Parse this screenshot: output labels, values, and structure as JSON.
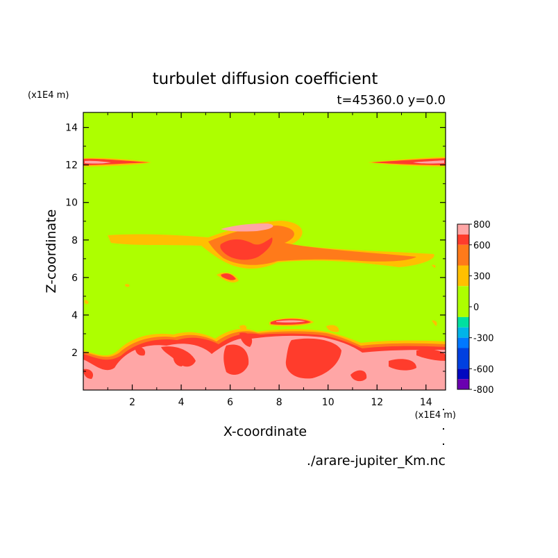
{
  "chart_data": {
    "type": "heatmap",
    "title": "turbulet diffusion coefficient",
    "subtitle": "t=45360.0 y=0.0",
    "xlabel": "X-coordinate",
    "ylabel": "Z-coordinate",
    "x_unit": "(x1E4 m)",
    "y_unit": "(x1E4 m)",
    "xlim": [
      0,
      14.8
    ],
    "ylim": [
      0,
      14.8
    ],
    "x_ticks": [
      "2",
      "4",
      "6",
      "8",
      "10",
      "12",
      "14"
    ],
    "y_ticks": [
      "2",
      "4",
      "6",
      "8",
      "10",
      "12",
      "14"
    ],
    "x_tick_values": [
      2,
      4,
      6,
      8,
      10,
      12,
      14
    ],
    "y_tick_values": [
      2,
      4,
      6,
      8,
      10,
      12,
      14
    ],
    "colorbar": {
      "labels": [
        "800",
        "600",
        "300",
        "0",
        "-300",
        "-600",
        "-800"
      ],
      "label_values": [
        800,
        600,
        300,
        0,
        -300,
        -600,
        -800
      ],
      "min": -800,
      "max": 800,
      "levels": [
        {
          "from": 700,
          "to": 800,
          "color": "#ffa6a6"
        },
        {
          "from": 600,
          "to": 700,
          "color": "#ff3c2c"
        },
        {
          "from": 400,
          "to": 600,
          "color": "#ff7a1a"
        },
        {
          "from": 200,
          "to": 400,
          "color": "#ffc000"
        },
        {
          "from": -100,
          "to": 200,
          "color": "#adff00"
        },
        {
          "from": -200,
          "to": -100,
          "color": "#00e0a0"
        },
        {
          "from": -300,
          "to": -200,
          "color": "#00b4e8"
        },
        {
          "from": -400,
          "to": -300,
          "color": "#0078ff"
        },
        {
          "from": -600,
          "to": -400,
          "color": "#0040e0"
        },
        {
          "from": -700,
          "to": -600,
          "color": "#0008c0"
        },
        {
          "from": -800,
          "to": -700,
          "color": "#6a00b0"
        }
      ]
    },
    "background_value": 0,
    "source_file": "./arare-jupiter_Km.nc"
  }
}
